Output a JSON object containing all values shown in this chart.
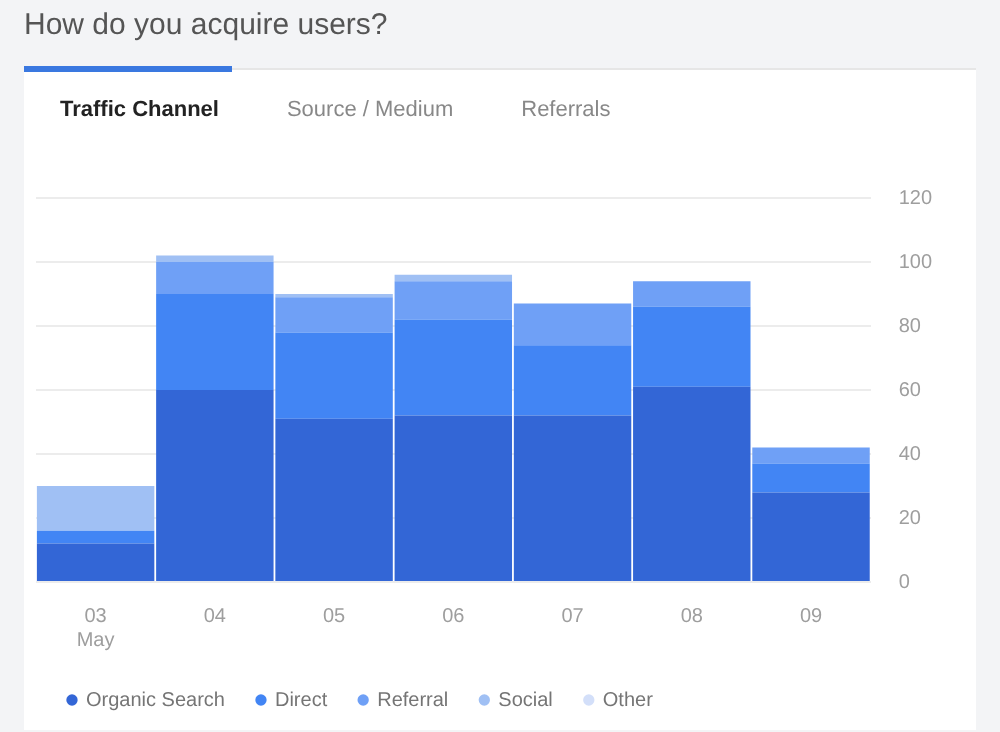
{
  "chart_data": {
    "type": "bar",
    "title": "How do you acquire users?",
    "annotations": [
      "Traffic Channel",
      "Source / Medium",
      "Referrals"
    ],
    "categories": [
      "03\nMay",
      "04",
      "05",
      "06",
      "07",
      "08",
      "09"
    ],
    "stacked": true,
    "series": [
      {
        "name": "Organic Search",
        "color": "#3366d6",
        "values": [
          12,
          60,
          51,
          52,
          52,
          61,
          28
        ]
      },
      {
        "name": "Direct",
        "color": "#4285f4",
        "values": [
          4,
          30,
          27,
          30,
          22,
          25,
          9
        ]
      },
      {
        "name": "Referral",
        "color": "#6fa0f6",
        "values": [
          0,
          10,
          11,
          12,
          13,
          8,
          5
        ]
      },
      {
        "name": "Social",
        "color": "#a0c0f4",
        "values": [
          14,
          2,
          1,
          2,
          0,
          0,
          0
        ]
      },
      {
        "name": "Other",
        "color": "#d3dff9",
        "values": [
          0,
          0,
          0,
          0,
          0,
          0,
          0
        ]
      }
    ],
    "ylim": [
      0,
      120
    ],
    "yticks": [
      0,
      20,
      40,
      60,
      80,
      100,
      120
    ],
    "grid": "y",
    "legend": "bottom left"
  }
}
